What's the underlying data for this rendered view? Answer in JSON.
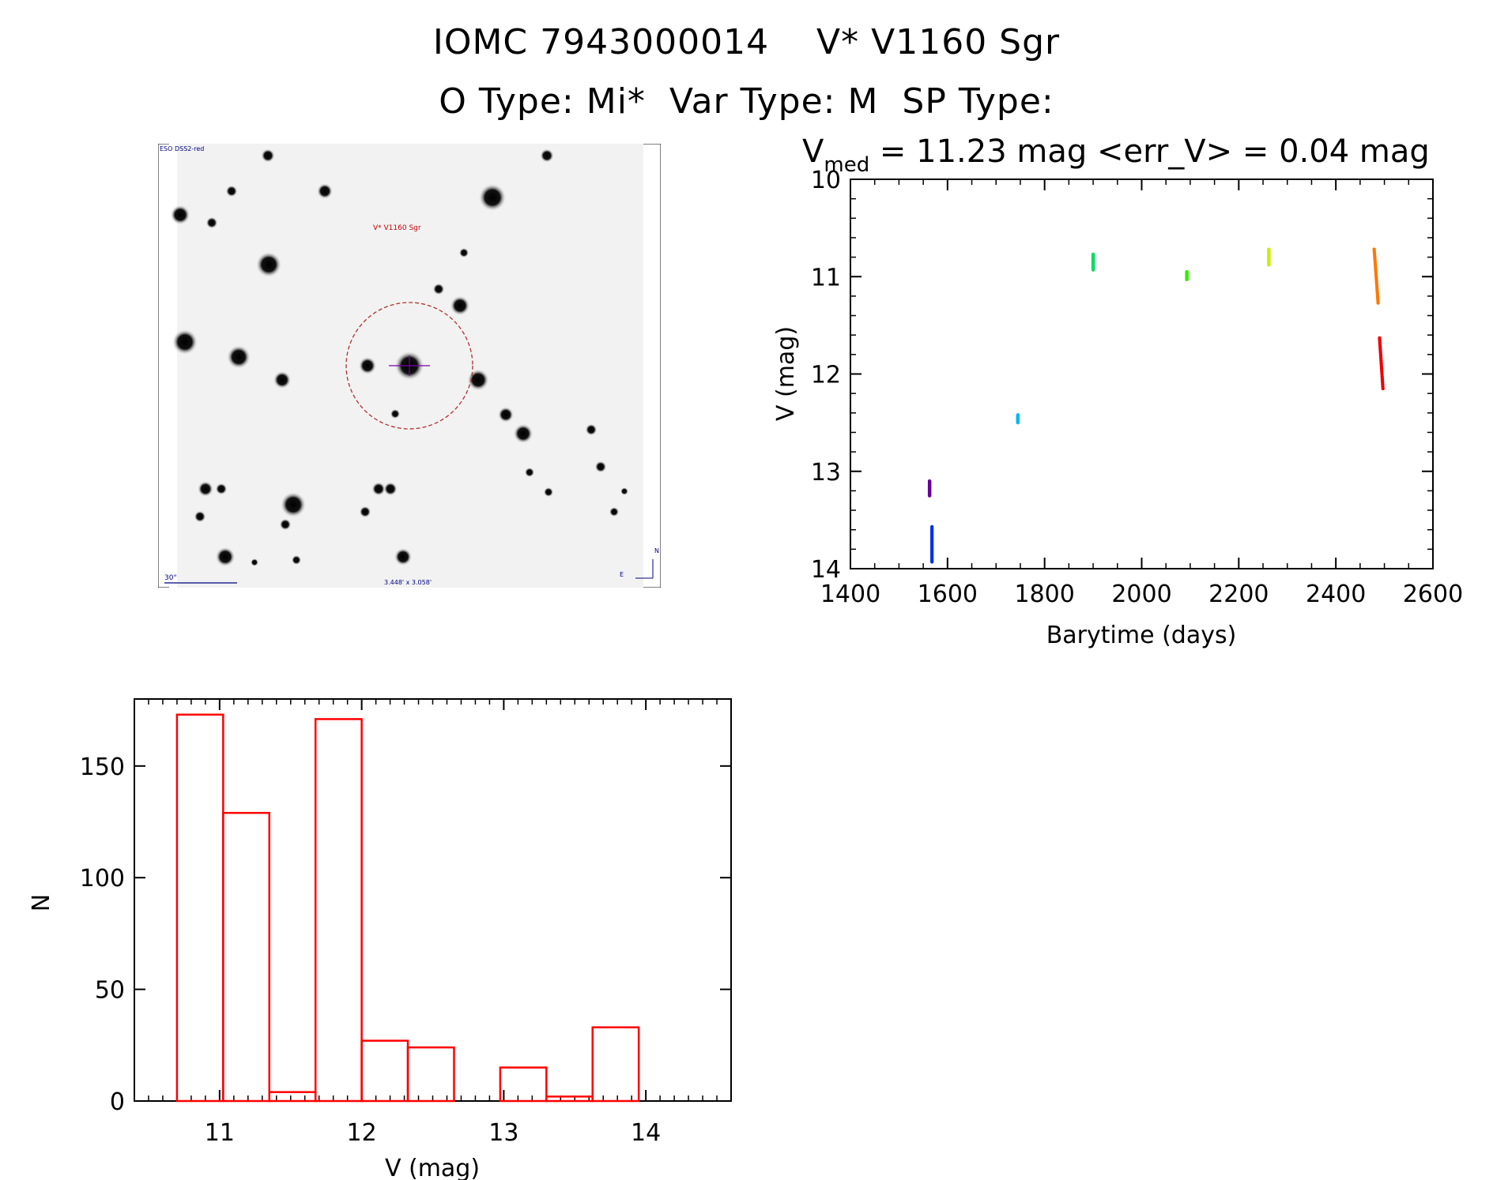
{
  "header": {
    "title": "IOMC 7943000014    V* V1160 Sgr",
    "subtitle": "O Type: Mi*  Var Type: M  SP Type:"
  },
  "finder": {
    "survey_label": "ESO DSS2-red",
    "target_label": "V* V1160 Sgr",
    "scale_label": "30\"",
    "fov_label": "3.448' x 3.058'",
    "north_label": "N",
    "east_label": "E"
  },
  "colors": {
    "histogram": "#ff0000",
    "finder_circle": "#b03030",
    "finder_text": "#000080",
    "target_text": "#c00000"
  },
  "chart_data": [
    {
      "type": "scatter",
      "title_parts": {
        "v": "V",
        "sub": "med",
        "rest": " = 11.23 mag <err_V> = 0.04 mag"
      },
      "xlabel": "Barytime (days)",
      "ylabel": "V (mag)",
      "xlim": [
        1400,
        2600
      ],
      "ylim": [
        14,
        10
      ],
      "y_inverted": true,
      "xticks": [
        1400,
        1600,
        1800,
        2000,
        2200,
        2400,
        2600
      ],
      "yticks": [
        10,
        11,
        12,
        13,
        14
      ],
      "series": [
        {
          "color": "#660099",
          "x": 1563,
          "y_range": [
            13.1,
            13.25
          ]
        },
        {
          "color": "#0033dd",
          "x": 1568,
          "y_range": [
            13.57,
            13.93
          ]
        },
        {
          "color": "#00bbee",
          "x": 1745,
          "y_range": [
            12.42,
            12.5
          ]
        },
        {
          "color": "#00dd66",
          "x": 1900,
          "y_range": [
            10.77,
            10.93
          ]
        },
        {
          "color": "#33ee00",
          "x": 2093,
          "y_range": [
            10.95,
            11.03
          ]
        },
        {
          "color": "#ccee00",
          "x": 2262,
          "y_range": [
            10.72,
            10.88
          ]
        },
        {
          "color": "#ff7700",
          "x_range": [
            2479,
            2487
          ],
          "y_range": [
            10.72,
            11.27
          ]
        },
        {
          "color": "#ee0000",
          "x_range": [
            2490,
            2497
          ],
          "y_range": [
            11.63,
            12.15
          ]
        }
      ]
    },
    {
      "type": "bar",
      "xlabel": "V (mag)",
      "ylabel": "N",
      "xlim": [
        10.4,
        14.6
      ],
      "ylim": [
        0,
        180
      ],
      "xticks": [
        11,
        12,
        13,
        14
      ],
      "yticks": [
        0,
        50,
        100,
        150
      ],
      "bin_edges": [
        10.7,
        11.025,
        11.35,
        11.675,
        12.0,
        12.325,
        12.65,
        12.975,
        13.3,
        13.625,
        13.95
      ],
      "values": [
        173,
        129,
        4,
        171,
        27,
        24,
        0,
        15,
        2,
        33
      ]
    }
  ]
}
